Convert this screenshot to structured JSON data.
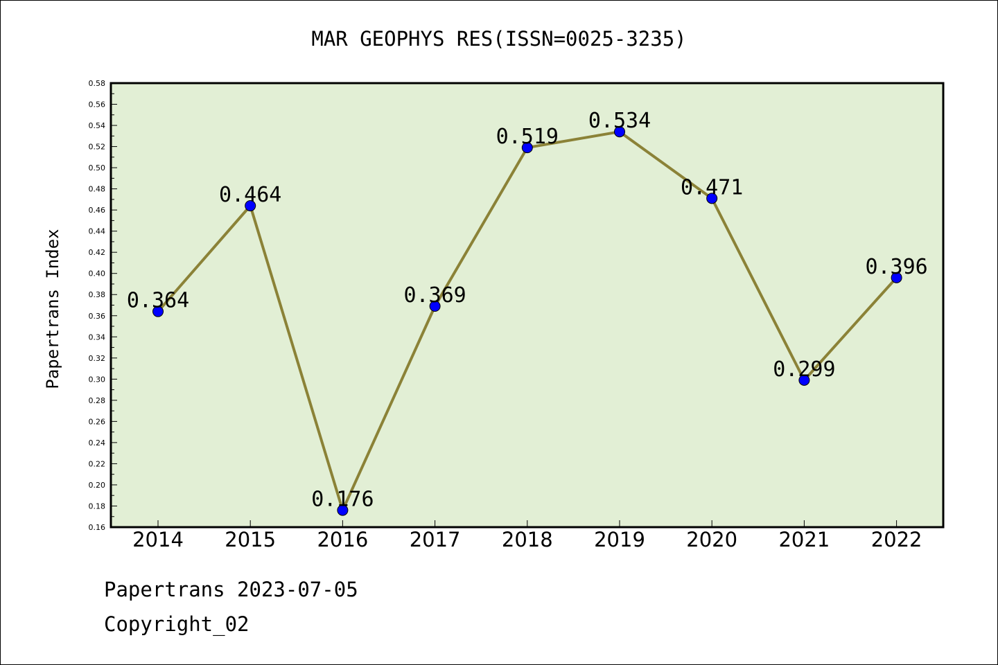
{
  "chart_data": {
    "type": "line",
    "title": "MAR GEOPHYS RES(ISSN=0025-3235)",
    "xlabel": "",
    "ylabel": "Papertrans Index",
    "categories": [
      "2014",
      "2015",
      "2016",
      "2017",
      "2018",
      "2019",
      "2020",
      "2021",
      "2022"
    ],
    "values": [
      0.364,
      0.464,
      0.176,
      0.369,
      0.519,
      0.534,
      0.471,
      0.299,
      0.396
    ],
    "value_labels": [
      "0.364",
      "0.464",
      "0.176",
      "0.369",
      "0.519",
      "0.534",
      "0.471",
      "0.299",
      "0.396"
    ],
    "ylim": [
      0.16,
      0.58
    ],
    "yticks": [
      "0.16",
      "0.18",
      "0.20",
      "0.22",
      "0.24",
      "0.26",
      "0.28",
      "0.30",
      "0.32",
      "0.34",
      "0.36",
      "0.38",
      "0.40",
      "0.42",
      "0.44",
      "0.46",
      "0.48",
      "0.50",
      "0.52",
      "0.54",
      "0.56",
      "0.58"
    ],
    "grid": false,
    "legend": "none",
    "colors": {
      "plot_background": "#e2efd5",
      "line": "#8b8237",
      "marker": "#0000ff"
    }
  },
  "footer": {
    "line1": "Papertrans 2023-07-05",
    "line2": "Copyright_02"
  }
}
